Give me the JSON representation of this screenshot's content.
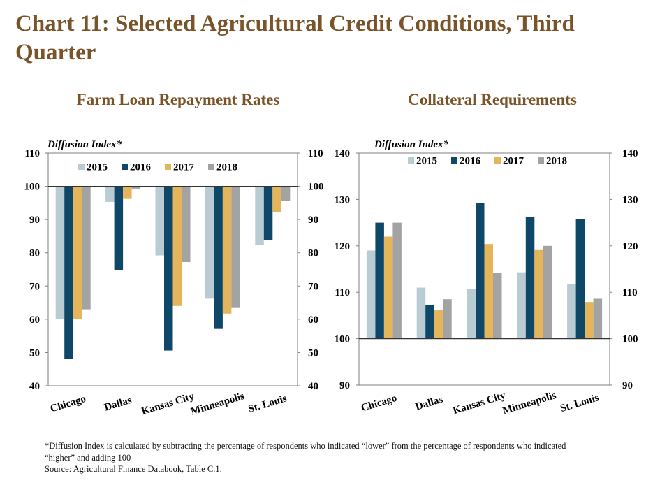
{
  "title": "Chart 11: Selected Agricultural Credit Conditions, Third Quarter",
  "colors": {
    "title": "#7a5328",
    "2015": "#b9cbd3",
    "2016": "#0f4768",
    "2017": "#e5b55c",
    "2018": "#a3a3a3"
  },
  "chart_data": [
    {
      "type": "bar",
      "title": "Farm Loan Repayment Rates",
      "ylabel": "Diffusion Index*",
      "baseline": 100,
      "ylim": [
        40,
        110
      ],
      "yticks": [
        40,
        50,
        60,
        70,
        80,
        90,
        100,
        110
      ],
      "categories": [
        "Chicago",
        "Dallas",
        "Kansas City",
        "Minneapolis",
        "St. Louis"
      ],
      "legend_position": "top",
      "series": [
        {
          "name": "2015",
          "values": [
            60,
            95.3,
            79.2,
            66.2,
            82.4
          ]
        },
        {
          "name": "2016",
          "values": [
            48,
            74.8,
            50.6,
            57.1,
            83.9
          ]
        },
        {
          "name": "2017",
          "values": [
            60,
            96.2,
            64,
            61.7,
            92.3
          ]
        },
        {
          "name": "2018",
          "values": [
            63,
            99.3,
            77.2,
            63.4,
            95.6
          ]
        }
      ]
    },
    {
      "type": "bar",
      "title": "Collateral Requirements",
      "ylabel": "Diffusion Index*",
      "baseline": 100,
      "ylim": [
        90,
        140
      ],
      "yticks": [
        90,
        100,
        110,
        120,
        130,
        140
      ],
      "categories": [
        "Chicago",
        "Dallas",
        "Kansas City",
        "Minneapolis",
        "St. Louis"
      ],
      "legend_position": "top",
      "series": [
        {
          "name": "2015",
          "values": [
            119,
            111,
            110.7,
            114.3,
            111.7
          ]
        },
        {
          "name": "2016",
          "values": [
            125,
            107.3,
            129.3,
            126.3,
            125.8
          ]
        },
        {
          "name": "2017",
          "values": [
            122,
            106.1,
            120.4,
            119.1,
            107.9
          ]
        },
        {
          "name": "2018",
          "values": [
            125,
            108.5,
            114.2,
            120,
            108.6
          ]
        }
      ]
    }
  ],
  "footnotes": {
    "definition": "*Diffusion Index is calculated by subtracting the percentage of respondents who indicated “lower” from the percentage of respondents who indicated “higher” and adding 100",
    "source": "Source: Agricultural Finance Databook, Table C.1."
  }
}
